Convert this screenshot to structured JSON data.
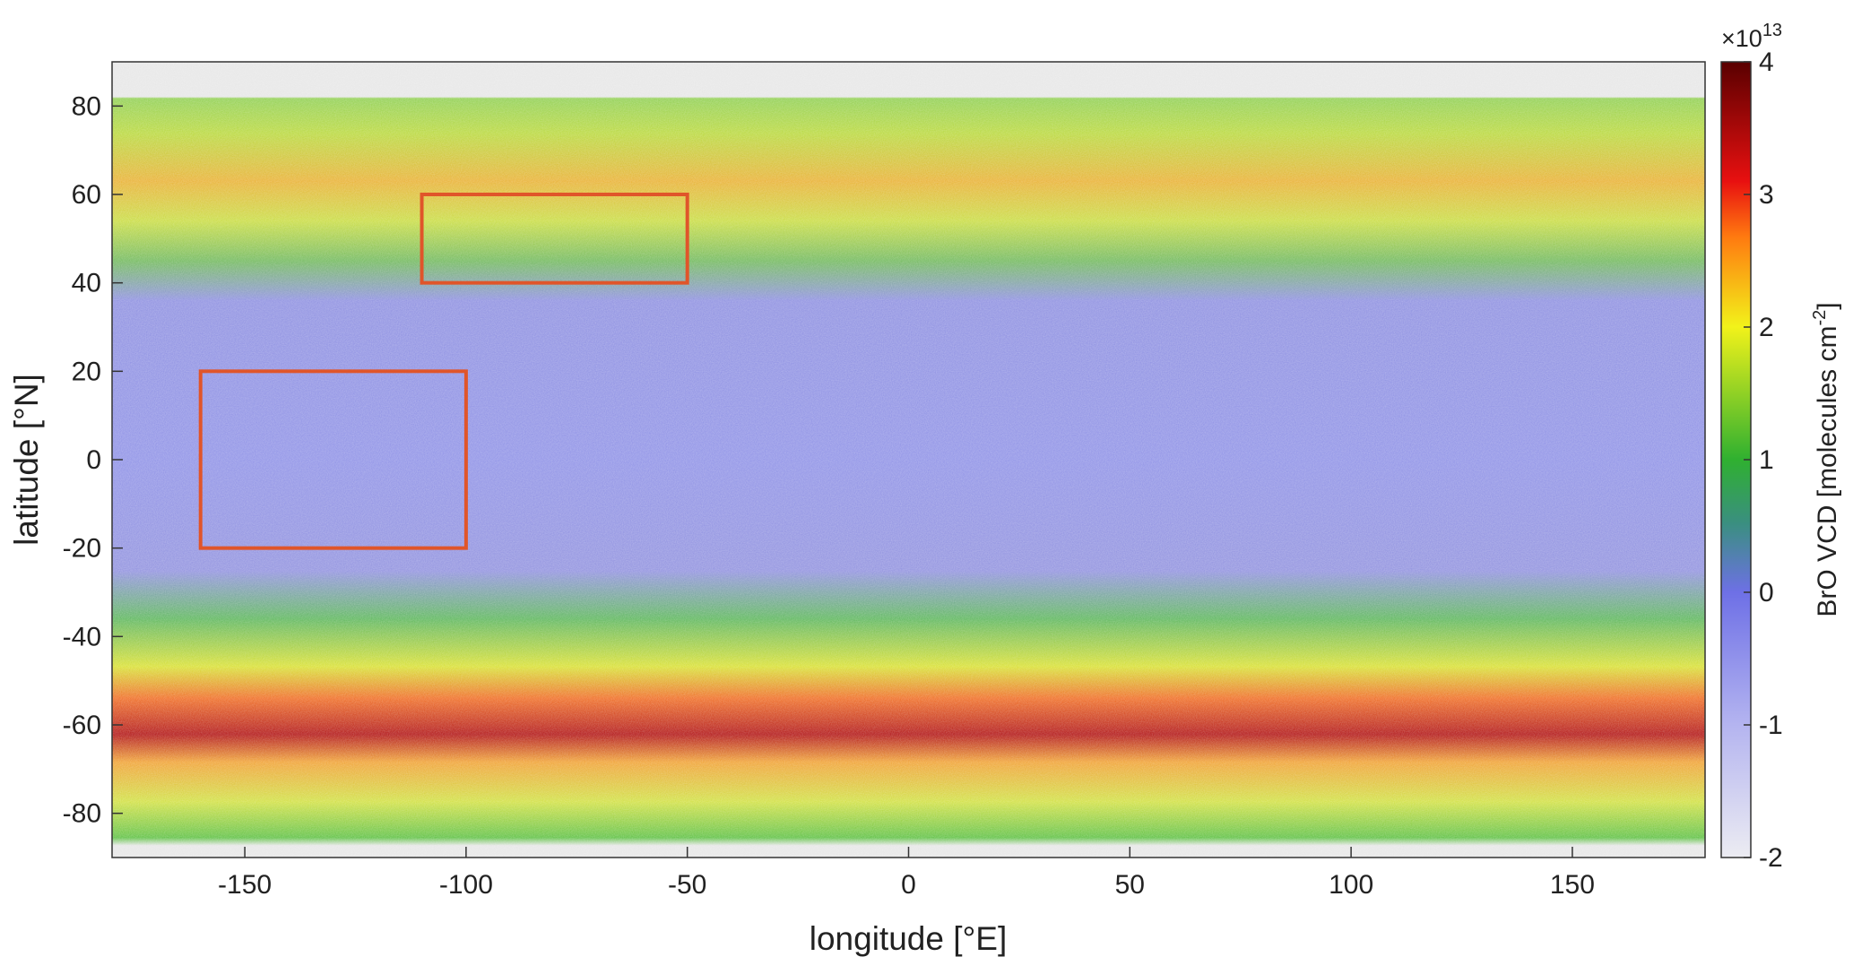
{
  "chart_data": {
    "type": "map",
    "xlabel": "longitude [°E]",
    "ylabel": "latitude [°N]",
    "xlim": [
      -180,
      180
    ],
    "ylim": [
      -90,
      90
    ],
    "xticks": [
      -150,
      -100,
      -50,
      0,
      50,
      100,
      150
    ],
    "yticks": [
      -80,
      -60,
      -40,
      -20,
      0,
      20,
      40,
      60,
      80
    ],
    "colorbar": {
      "label": [
        "BrO VCD [molecules cm",
        "-2",
        "]"
      ],
      "scale": [
        "×10",
        "13"
      ],
      "clim": [
        -2,
        4
      ],
      "ticks": [
        -2,
        -1,
        0,
        1,
        2,
        3,
        4
      ]
    },
    "regions": [
      {
        "lon": [
          -110,
          -50
        ],
        "lat": [
          40,
          60
        ],
        "color": "#e0552a"
      },
      {
        "lon": [
          -160,
          -100
        ],
        "lat": [
          -20,
          20
        ],
        "color": "#e0552a"
      }
    ]
  }
}
